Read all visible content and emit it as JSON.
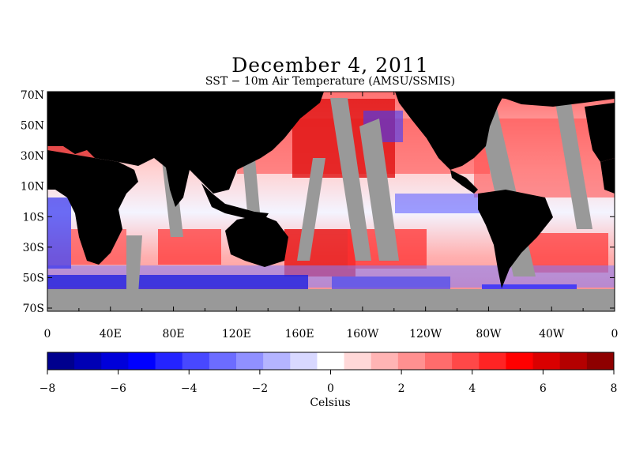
{
  "title": "December 4, 2011",
  "subtitle": "SST − 10m Air Temperature (AMSU/SSMIS)",
  "map": {
    "lat_labels": [
      "70N",
      "50N",
      "30N",
      "10N",
      "10S",
      "30S",
      "50S",
      "70S"
    ],
    "lon_labels": [
      "0",
      "40E",
      "80E",
      "120E",
      "160E",
      "160W",
      "120W",
      "80W",
      "40W",
      "0"
    ],
    "colors": {
      "land": "#000000",
      "missing": "#999999"
    }
  },
  "colorbar": {
    "label": "Celsius",
    "tick_labels": [
      "−8",
      "−6",
      "−4",
      "−2",
      "0",
      "2",
      "4",
      "6",
      "8"
    ],
    "range": [
      -8,
      8
    ],
    "colors": [
      "#00008e",
      "#0000b4",
      "#0000da",
      "#0000ff",
      "#2424ff",
      "#4848ff",
      "#6c6cff",
      "#9090ff",
      "#b4b4ff",
      "#d8d8ff",
      "#ffffff",
      "#ffd8d8",
      "#ffb4b4",
      "#ff9090",
      "#ff6c6c",
      "#ff4848",
      "#ff2424",
      "#ff0000",
      "#da0000",
      "#b40000",
      "#8e0000"
    ]
  }
}
